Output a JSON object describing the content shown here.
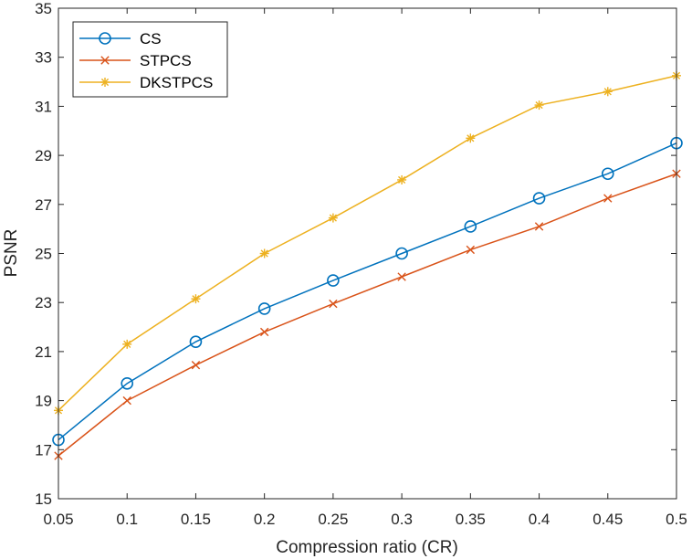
{
  "chart_data": {
    "type": "line",
    "title": "",
    "xlabel": "Compression ratio (CR)",
    "ylabel": "PSNR",
    "x": [
      0.05,
      0.1,
      0.15,
      0.2,
      0.25,
      0.3,
      0.35,
      0.4,
      0.45,
      0.5
    ],
    "xticks": [
      "0.05",
      "0.1",
      "0.15",
      "0.2",
      "0.25",
      "0.3",
      "0.35",
      "0.4",
      "0.45",
      "0.5"
    ],
    "yticks": [
      "15",
      "17",
      "19",
      "21",
      "23",
      "25",
      "27",
      "29",
      "31",
      "33",
      "35"
    ],
    "xlim": [
      0.05,
      0.5
    ],
    "ylim": [
      15,
      35
    ],
    "grid": false,
    "legend_position": "top-left",
    "series": [
      {
        "name": "CS",
        "marker": "circle",
        "color": "#0072BD",
        "values": [
          17.4,
          19.7,
          21.4,
          22.75,
          23.9,
          25.0,
          26.1,
          27.25,
          28.25,
          29.5
        ]
      },
      {
        "name": "STPCS",
        "marker": "x",
        "color": "#D95319",
        "values": [
          16.75,
          19.0,
          20.45,
          21.8,
          22.95,
          24.05,
          25.15,
          26.1,
          27.25,
          28.25
        ]
      },
      {
        "name": "DKSTPCS",
        "marker": "asterisk",
        "color": "#EDB120",
        "values": [
          18.6,
          21.3,
          23.15,
          25.0,
          26.45,
          28.0,
          29.7,
          31.05,
          31.6,
          32.25
        ]
      }
    ]
  }
}
